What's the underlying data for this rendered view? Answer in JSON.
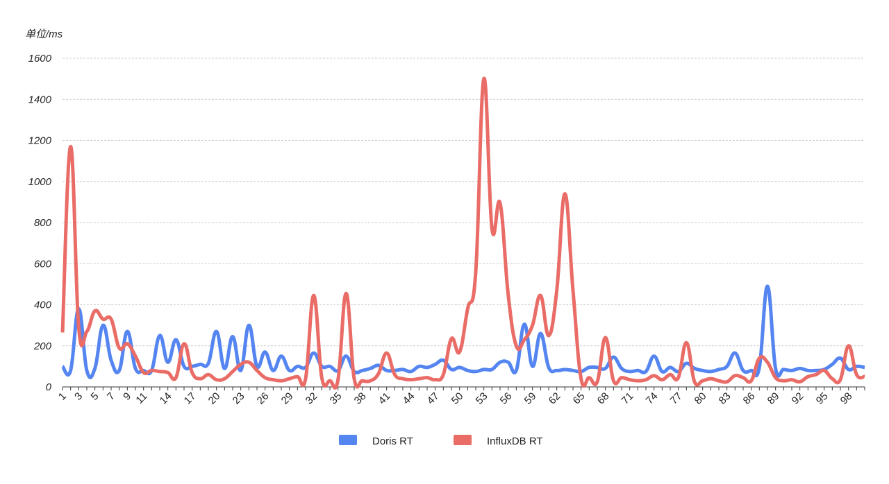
{
  "chart_data": {
    "type": "line",
    "y_label": "单位/ms",
    "categories": [
      "1",
      null,
      "3",
      null,
      "5",
      null,
      "7",
      null,
      "9",
      null,
      "11",
      null,
      null,
      "14",
      null,
      null,
      "17",
      null,
      null,
      "20",
      null,
      null,
      "23",
      null,
      null,
      "26",
      null,
      null,
      "29",
      null,
      null,
      "32",
      null,
      null,
      "35",
      null,
      null,
      "38",
      null,
      null,
      "41",
      null,
      null,
      "44",
      null,
      null,
      "47",
      null,
      null,
      "50",
      null,
      null,
      "53",
      null,
      null,
      "56",
      null,
      null,
      "59",
      null,
      null,
      "62",
      null,
      null,
      "65",
      null,
      null,
      "68",
      null,
      null,
      "71",
      null,
      null,
      "74",
      null,
      null,
      "77",
      null,
      null,
      "80",
      null,
      null,
      "83",
      null,
      null,
      "86",
      null,
      null,
      "89",
      null,
      null,
      "92",
      null,
      null,
      "95",
      null,
      null,
      "98",
      null,
      null
    ],
    "series": [
      {
        "name": "Doris RT",
        "color": "#5585f0",
        "values": [
          100,
          80,
          380,
          80,
          90,
          300,
          130,
          80,
          270,
          90,
          80,
          80,
          250,
          120,
          230,
          100,
          100,
          110,
          115,
          270,
          90,
          245,
          80,
          300,
          100,
          170,
          80,
          150,
          80,
          100,
          95,
          165,
          100,
          100,
          80,
          150,
          75,
          80,
          90,
          105,
          80,
          80,
          85,
          75,
          100,
          95,
          110,
          130,
          85,
          95,
          80,
          75,
          85,
          85,
          120,
          120,
          80,
          305,
          100,
          260,
          95,
          80,
          85,
          80,
          75,
          95,
          95,
          90,
          145,
          90,
          75,
          80,
          75,
          150,
          75,
          95,
          75,
          115,
          90,
          80,
          75,
          85,
          100,
          165,
          80,
          80,
          95,
          490,
          90,
          85,
          80,
          90,
          80,
          80,
          85,
          110,
          140,
          85,
          100,
          95
        ]
      },
      {
        "name": "InfluxDB RT",
        "color": "#e96c67",
        "values": [
          265,
          1170,
          290,
          270,
          370,
          330,
          330,
          190,
          210,
          150,
          70,
          80,
          75,
          70,
          45,
          210,
          70,
          40,
          60,
          35,
          40,
          75,
          110,
          120,
          80,
          45,
          35,
          30,
          40,
          50,
          40,
          445,
          45,
          30,
          35,
          455,
          40,
          30,
          30,
          65,
          165,
          60,
          40,
          35,
          40,
          45,
          35,
          60,
          235,
          170,
          380,
          560,
          1500,
          770,
          895,
          450,
          200,
          230,
          300,
          445,
          250,
          470,
          940,
          470,
          40,
          45,
          25,
          240,
          30,
          45,
          35,
          30,
          35,
          55,
          35,
          60,
          45,
          215,
          25,
          30,
          40,
          30,
          25,
          55,
          45,
          30,
          140,
          120,
          45,
          30,
          35,
          25,
          50,
          60,
          80,
          40,
          35,
          200,
          60,
          50
        ]
      }
    ],
    "ylim": [
      0,
      1600
    ],
    "yticks": [
      0,
      200,
      400,
      600,
      800,
      1000,
      1200,
      1400,
      1600
    ],
    "grid": true
  }
}
